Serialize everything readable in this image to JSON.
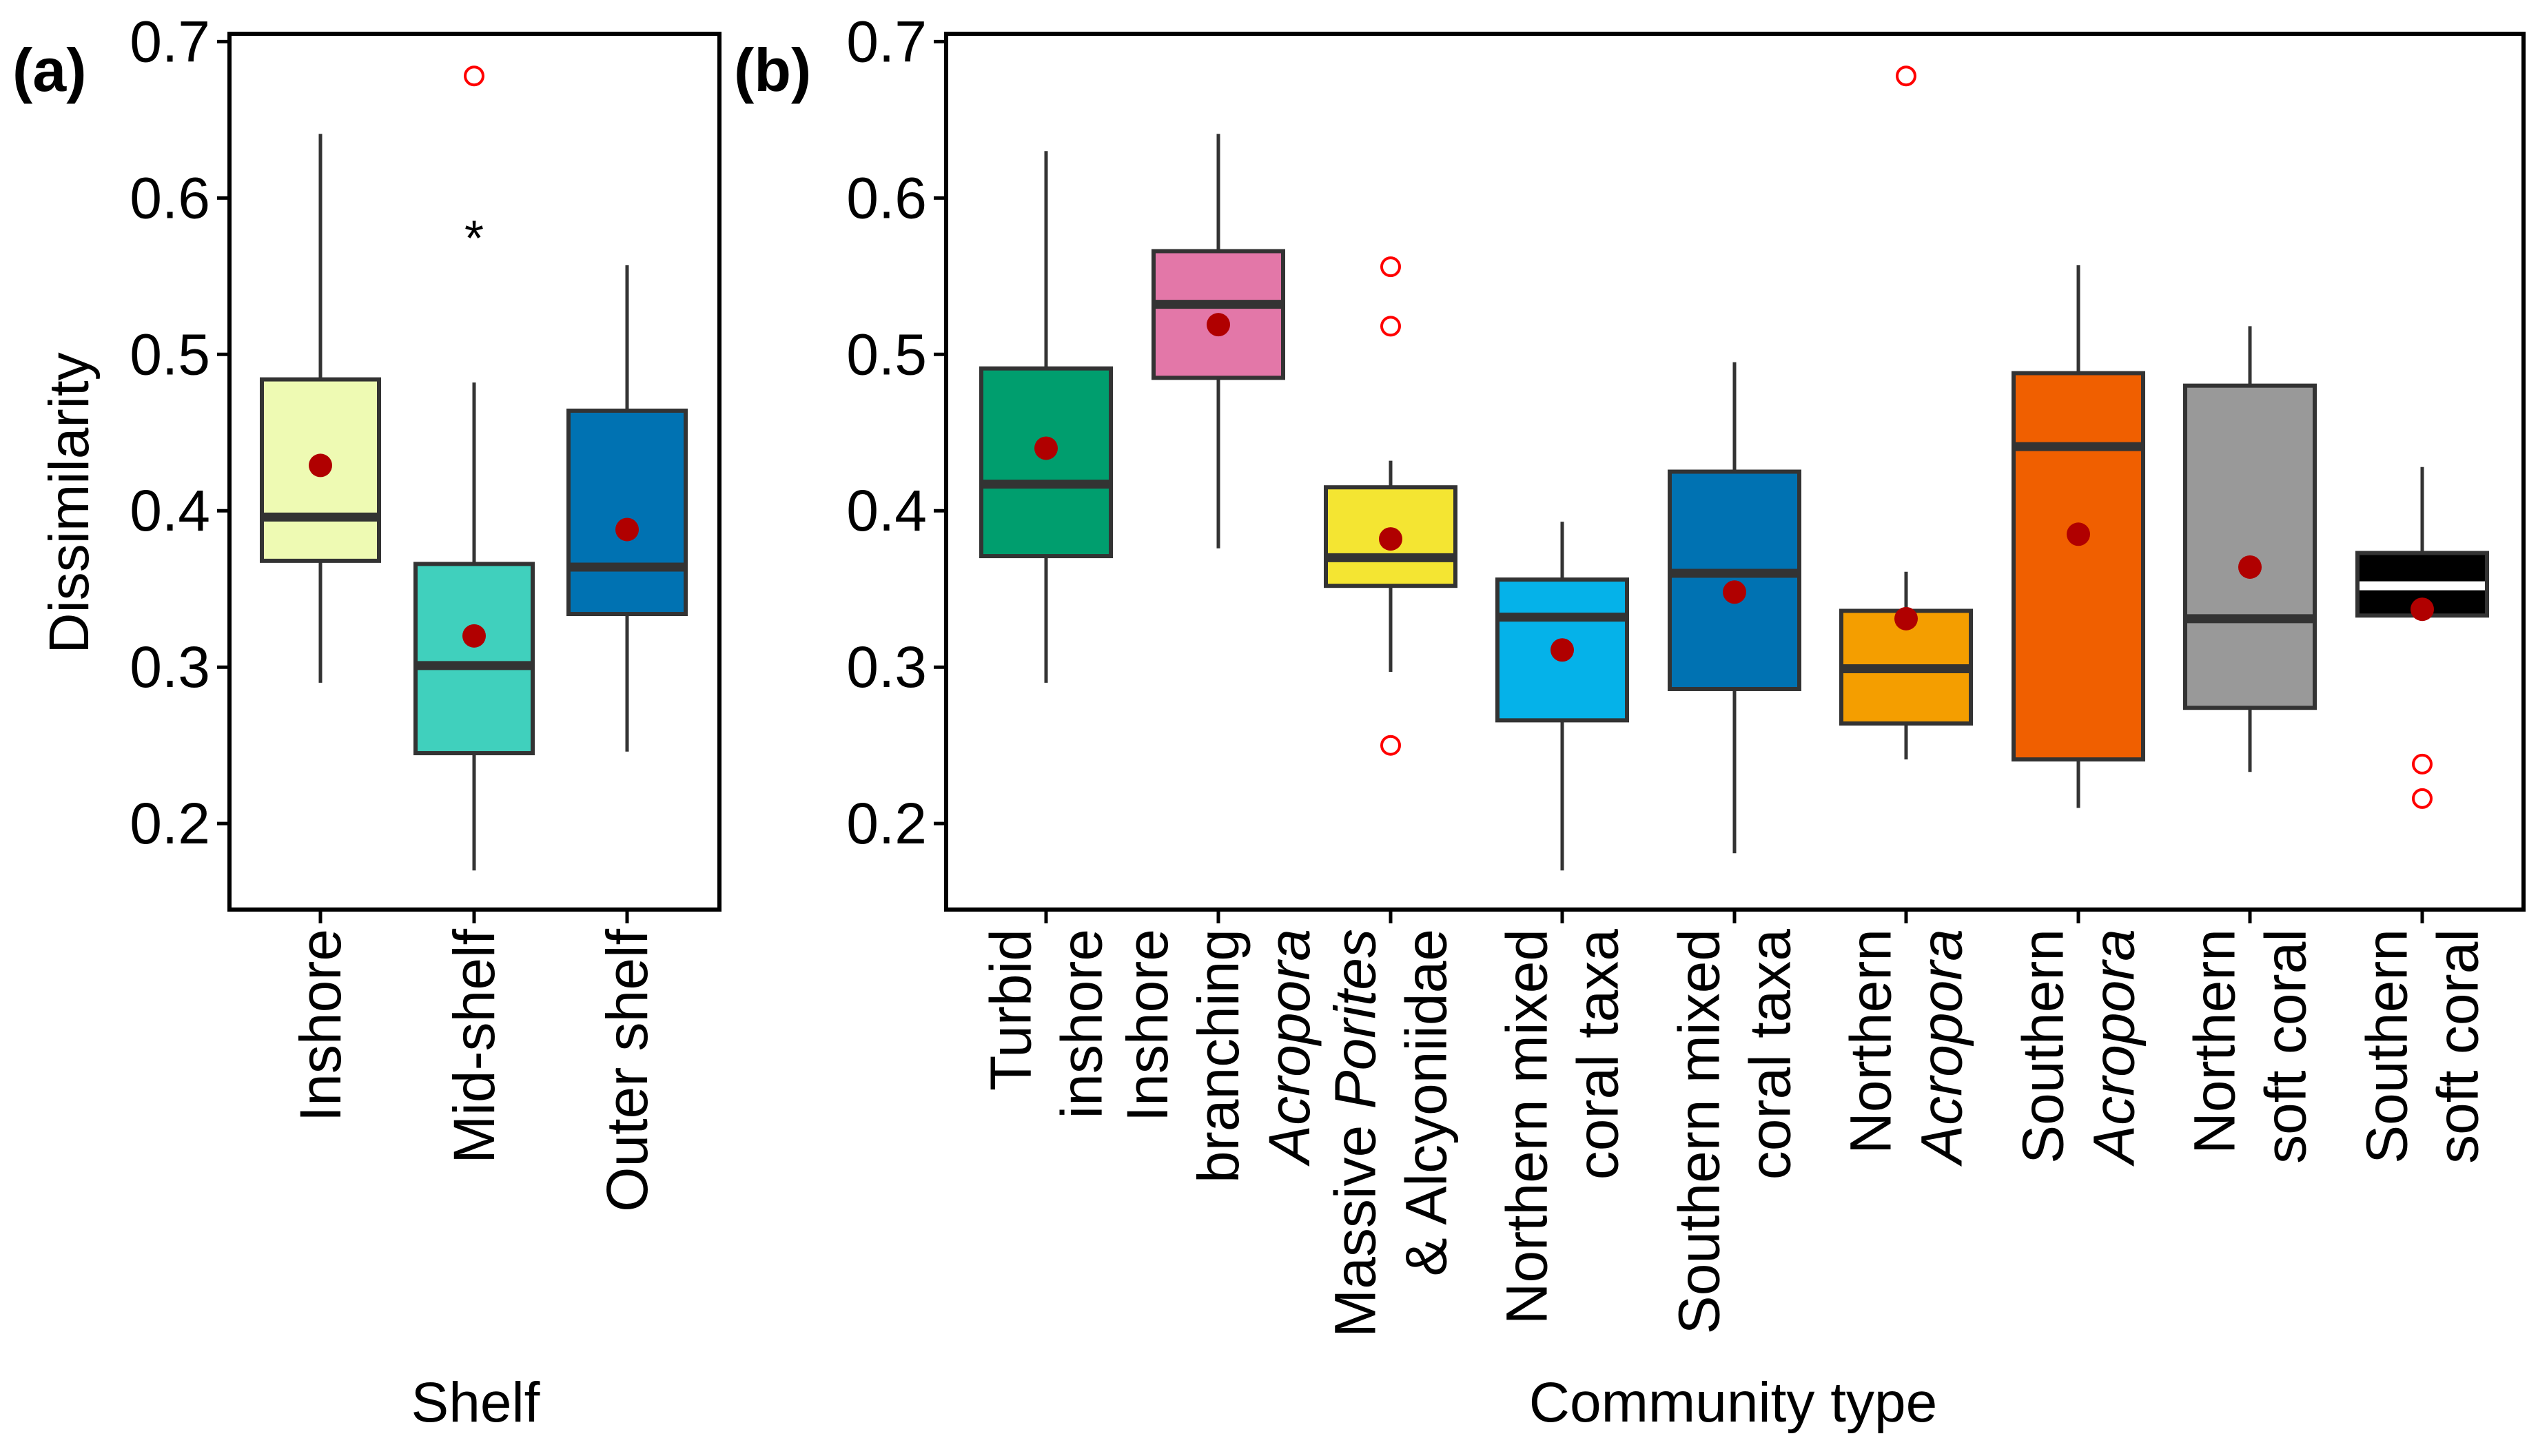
{
  "chart_data": [
    {
      "panel": "(a)",
      "type": "box",
      "xlabel": "Shelf",
      "ylabel": "Dissimilarity",
      "ylim": [
        0.145,
        0.705
      ],
      "yticks": [
        "0.2",
        "0.3",
        "0.4",
        "0.5",
        "0.6",
        "0.7"
      ],
      "categories": [
        "Inshore",
        "Mid-shelf",
        "Outer shelf"
      ],
      "boxes": [
        {
          "name": "Inshore",
          "color": "#eefab3",
          "whisker_low": 0.29,
          "q1": 0.368,
          "median": 0.396,
          "q3": 0.484,
          "whisker_high": 0.641,
          "mean": 0.429,
          "outliers": []
        },
        {
          "name": "Mid-shelf",
          "color": "#40d0bd",
          "whisker_low": 0.17,
          "q1": 0.245,
          "median": 0.301,
          "q3": 0.366,
          "whisker_high": 0.482,
          "mean": 0.32,
          "outliers": [
            0.678
          ],
          "annotation": "*"
        },
        {
          "name": "Outer shelf",
          "color": "#0072b2",
          "whisker_low": 0.246,
          "q1": 0.334,
          "median": 0.364,
          "q3": 0.464,
          "whisker_high": 0.557,
          "mean": 0.388,
          "outliers": []
        }
      ]
    },
    {
      "panel": "(b)",
      "type": "box",
      "xlabel": "Community type",
      "ylabel": "",
      "ylim": [
        0.145,
        0.705
      ],
      "yticks": [
        "0.2",
        "0.3",
        "0.4",
        "0.5",
        "0.6",
        "0.7"
      ],
      "categories": [
        {
          "lines": [
            "Turbid",
            "inshore"
          ]
        },
        {
          "lines": [
            "Inshore",
            "branching",
            "Acropora"
          ]
        },
        {
          "lines": [
            "Massive Porites",
            "& Alcyoniidae"
          ]
        },
        {
          "lines": [
            "Northern mixed",
            "coral taxa"
          ]
        },
        {
          "lines": [
            "Southern mixed",
            "coral taxa"
          ]
        },
        {
          "lines": [
            "Northern",
            "Acropora"
          ]
        },
        {
          "lines": [
            "Southern",
            "Acropora"
          ]
        },
        {
          "lines": [
            "Northern",
            "soft coral"
          ]
        },
        {
          "lines": [
            "Southern",
            "soft coral"
          ]
        }
      ],
      "boxes": [
        {
          "name": "Turbid inshore",
          "color": "#009e6e",
          "whisker_low": 0.29,
          "q1": 0.371,
          "median": 0.417,
          "q3": 0.491,
          "whisker_high": 0.63,
          "mean": 0.44,
          "outliers": []
        },
        {
          "name": "Inshore branching Acropora",
          "color": "#e377a8",
          "whisker_low": 0.376,
          "q1": 0.485,
          "median": 0.532,
          "q3": 0.566,
          "whisker_high": 0.641,
          "mean": 0.519,
          "outliers": []
        },
        {
          "name": "Massive Porites & Alcyoniidae",
          "color": "#f4e532",
          "whisker_low": 0.297,
          "q1": 0.352,
          "median": 0.37,
          "q3": 0.415,
          "whisker_high": 0.432,
          "mean": 0.382,
          "outliers": [
            0.556,
            0.518,
            0.25
          ]
        },
        {
          "name": "Northern mixed coral taxa",
          "color": "#05b2e9",
          "whisker_low": 0.17,
          "q1": 0.266,
          "median": 0.332,
          "q3": 0.356,
          "whisker_high": 0.393,
          "mean": 0.311,
          "outliers": []
        },
        {
          "name": "Southern mixed coral taxa",
          "color": "#0072b2",
          "whisker_low": 0.181,
          "q1": 0.286,
          "median": 0.36,
          "q3": 0.425,
          "whisker_high": 0.495,
          "mean": 0.348,
          "outliers": []
        },
        {
          "name": "Northern Acropora",
          "color": "#f49e00",
          "whisker_low": 0.241,
          "q1": 0.264,
          "median": 0.299,
          "q3": 0.336,
          "whisker_high": 0.361,
          "mean": 0.331,
          "outliers": [
            0.678
          ]
        },
        {
          "name": "Southern Acropora",
          "color": "#f05f00",
          "whisker_low": 0.21,
          "q1": 0.241,
          "median": 0.441,
          "q3": 0.488,
          "whisker_high": 0.557,
          "mean": 0.385,
          "outliers": []
        },
        {
          "name": "Northern soft coral",
          "color": "#999999",
          "whisker_low": 0.233,
          "q1": 0.274,
          "median": 0.331,
          "q3": 0.48,
          "whisker_high": 0.518,
          "mean": 0.364,
          "outliers": []
        },
        {
          "name": "Southern soft coral",
          "color": "#000000",
          "whisker_low": 0.333,
          "q1": 0.333,
          "median": 0.352,
          "q3": 0.373,
          "whisker_high": 0.428,
          "mean": 0.337,
          "outliers": [
            0.238,
            0.216
          ],
          "median_color": "#ffffff"
        }
      ]
    }
  ],
  "colors": {
    "mean_point": "#b00000",
    "outlier": "#ff0000",
    "box_edge": "#333333"
  }
}
